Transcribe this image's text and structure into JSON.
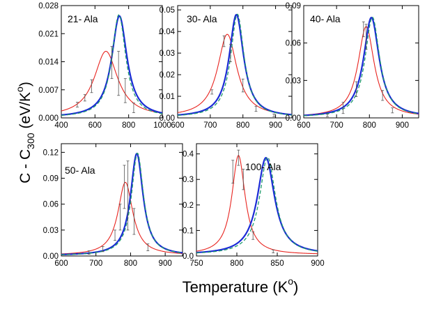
{
  "figure": {
    "ylabel_main": "C - C",
    "ylabel_sub": "300",
    "ylabel_unit_open": "(eV/K",
    "ylabel_unit_sup": "o",
    "ylabel_unit_close": ")",
    "xlabel_main": "Temperature (K",
    "xlabel_sup": "o",
    "xlabel_close": ")"
  },
  "colors": {
    "red": "#e8241f",
    "blue": "#1b2bd6",
    "green": "#1d9a6c",
    "error": "#555555"
  },
  "chart_data": [
    {
      "type": "line",
      "title": "21- Ala",
      "xlim": [
        400,
        1000
      ],
      "ylim": [
        0,
        0.028
      ],
      "xticks": [
        400,
        600,
        800,
        1000
      ],
      "xtick_labels": [
        "400",
        "600",
        "800",
        "1000"
      ],
      "yticks": [
        0,
        0.007,
        0.014,
        0.021,
        0.028
      ],
      "ytick_labels": [
        "0.000",
        "0.007",
        "0.014",
        "0.021",
        "0.028"
      ],
      "series": [
        {
          "name": "red",
          "x0": 665,
          "w": 85,
          "peak": 0.0164,
          "base": 0.0002,
          "tail": 0.0003
        },
        {
          "name": "blue",
          "x0": 745,
          "w": 55,
          "peak": 0.0253,
          "base": 0.0001,
          "tail": 0.0001
        },
        {
          "name": "green",
          "x0": 742,
          "w": 50,
          "peak": 0.0256,
          "base": 0.0001,
          "tail": 0.0001
        }
      ],
      "error_bars": [
        {
          "x": 495,
          "y": 0.0033,
          "e": 0.0006
        },
        {
          "x": 540,
          "y": 0.005,
          "e": 0.0008
        },
        {
          "x": 580,
          "y": 0.0079,
          "e": 0.0016
        },
        {
          "x": 700,
          "y": 0.0138,
          "e": 0.004
        },
        {
          "x": 740,
          "y": 0.0111,
          "e": 0.0055
        },
        {
          "x": 780,
          "y": 0.0068,
          "e": 0.003
        },
        {
          "x": 830,
          "y": 0.0025,
          "e": 0.0012
        }
      ]
    },
    {
      "type": "line",
      "title": "30- Ala",
      "xlim": [
        600,
        950
      ],
      "ylim": [
        0,
        0.052
      ],
      "xticks": [
        600,
        700,
        800,
        900
      ],
      "xtick_labels": [
        "600",
        "700",
        "800",
        "900"
      ],
      "yticks": [
        0,
        0.01,
        0.02,
        0.03,
        0.04,
        0.05
      ],
      "ytick_labels": [
        "0.00",
        "0.01",
        "0.02",
        "0.03",
        "0.04",
        "0.05"
      ],
      "series": [
        {
          "name": "red",
          "x0": 752,
          "w": 36,
          "peak": 0.0383,
          "base": 0.0004,
          "tail": 0.0004
        },
        {
          "name": "blue",
          "x0": 780,
          "w": 27,
          "peak": 0.0475,
          "base": 0.0003,
          "tail": 0.0003
        },
        {
          "name": "green",
          "x0": 783,
          "w": 25,
          "peak": 0.0477,
          "base": 0.0003,
          "tail": 0.0003
        }
      ],
      "error_bars": [
        {
          "x": 705,
          "y": 0.012,
          "e": 0.001
        },
        {
          "x": 742,
          "y": 0.0355,
          "e": 0.0025
        },
        {
          "x": 762,
          "y": 0.03,
          "e": 0.004
        },
        {
          "x": 800,
          "y": 0.015,
          "e": 0.003
        },
        {
          "x": 840,
          "y": 0.0042,
          "e": 0.0012
        },
        {
          "x": 895,
          "y": 0.0012,
          "e": 0.0006
        }
      ]
    },
    {
      "type": "line",
      "title": "40- Ala",
      "xlim": [
        600,
        950
      ],
      "ylim": [
        0,
        0.09
      ],
      "xticks": [
        600,
        700,
        800,
        900
      ],
      "xtick_labels": [
        "600",
        "700",
        "800",
        "900"
      ],
      "yticks": [
        0,
        0.03,
        0.06,
        0.09
      ],
      "ytick_labels": [
        "0.00",
        "0.03",
        "0.06",
        "0.09"
      ],
      "series": [
        {
          "name": "red",
          "x0": 790,
          "w": 30,
          "peak": 0.0727,
          "base": 0.0005,
          "tail": 0.0005
        },
        {
          "name": "blue",
          "x0": 806,
          "w": 29,
          "peak": 0.08,
          "base": 0.0004,
          "tail": 0.0004
        },
        {
          "name": "green",
          "x0": 809,
          "w": 27,
          "peak": 0.0803,
          "base": 0.0004,
          "tail": 0.0004
        }
      ],
      "error_bars": [
        {
          "x": 672,
          "y": 0.002,
          "e": 0.001
        },
        {
          "x": 720,
          "y": 0.008,
          "e": 0.0045
        },
        {
          "x": 760,
          "y": 0.023,
          "e": 0.006
        },
        {
          "x": 782,
          "y": 0.071,
          "e": 0.006
        },
        {
          "x": 790,
          "y": 0.065,
          "e": 0.01
        },
        {
          "x": 840,
          "y": 0.018,
          "e": 0.004
        },
        {
          "x": 870,
          "y": 0.006,
          "e": 0.002
        }
      ]
    },
    {
      "type": "line",
      "title": "50- Ala",
      "xlim": [
        600,
        950
      ],
      "ylim": [
        0,
        0.13
      ],
      "xticks": [
        600,
        700,
        800,
        900
      ],
      "xtick_labels": [
        "600",
        "700",
        "800",
        "900"
      ],
      "yticks": [
        0,
        0.03,
        0.06,
        0.09,
        0.12
      ],
      "ytick_labels": [
        "0.00",
        "0.03",
        "0.06",
        "0.09",
        "0.12"
      ],
      "series": [
        {
          "name": "red",
          "x0": 785,
          "w": 26,
          "peak": 0.0845,
          "base": 0.0008,
          "tail": 0.0008
        },
        {
          "name": "blue",
          "x0": 818,
          "w": 22,
          "peak": 0.118,
          "base": 0.0005,
          "tail": 0.0005
        },
        {
          "name": "green",
          "x0": 820,
          "w": 21,
          "peak": 0.1185,
          "base": 0.0005,
          "tail": 0.0005
        }
      ],
      "error_bars": [
        {
          "x": 680,
          "y": 0.004,
          "e": 0.002
        },
        {
          "x": 720,
          "y": 0.008,
          "e": 0.003
        },
        {
          "x": 755,
          "y": 0.024,
          "e": 0.006
        },
        {
          "x": 770,
          "y": 0.045,
          "e": 0.015
        },
        {
          "x": 782,
          "y": 0.08,
          "e": 0.025
        },
        {
          "x": 792,
          "y": 0.07,
          "e": 0.04
        },
        {
          "x": 810,
          "y": 0.04,
          "e": 0.015
        },
        {
          "x": 850,
          "y": 0.01,
          "e": 0.004
        }
      ]
    },
    {
      "type": "line",
      "title": "100- Ala",
      "xlim": [
        750,
        900
      ],
      "ylim": [
        0,
        0.44
      ],
      "xticks": [
        750,
        800,
        850,
        900
      ],
      "xtick_labels": [
        "750",
        "800",
        "850",
        "900"
      ],
      "yticks": [
        0,
        0.1,
        0.2,
        0.3,
        0.4
      ],
      "ytick_labels": [
        "0.0",
        "0.1",
        "0.2",
        "0.3",
        "0.4"
      ],
      "series": [
        {
          "name": "red",
          "x0": 802,
          "w": 10,
          "peak": 0.389,
          "base": 0.005,
          "tail": 0.004
        },
        {
          "name": "blue",
          "x0": 836,
          "w": 13,
          "peak": 0.38,
          "base": 0.005,
          "tail": 0.005
        },
        {
          "name": "green",
          "x0": 838,
          "w": 12,
          "peak": 0.382,
          "base": 0.005,
          "tail": 0.005
        }
      ],
      "error_bars": [
        {
          "x": 795,
          "y": 0.33,
          "e": 0.045
        },
        {
          "x": 802,
          "y": 0.385,
          "e": 0.03
        },
        {
          "x": 808,
          "y": 0.3,
          "e": 0.04
        },
        {
          "x": 820,
          "y": 0.08,
          "e": 0.015
        },
        {
          "x": 845,
          "y": 0.018,
          "e": 0.006
        }
      ]
    }
  ]
}
